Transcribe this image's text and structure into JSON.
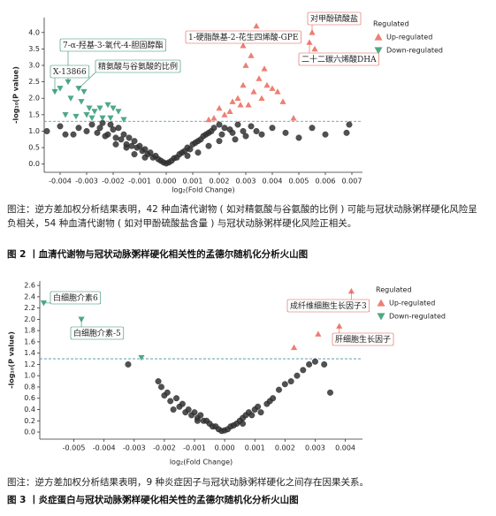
{
  "chart_data": [
    {
      "type": "scatter",
      "xlabel": "log₂(Fold Change)",
      "ylabel": "-log₁₀(P value)",
      "xlim": [
        -0.0046,
        0.0074
      ],
      "ylim": [
        -0.25,
        4.45
      ],
      "xticks": [
        -0.004,
        -0.003,
        -0.002,
        -0.001,
        {
          "value": 0,
          "label": "0.000"
        },
        0.001,
        0.002,
        0.003,
        0.004,
        0.005,
        0.006,
        0.007
      ],
      "yticks": [
        {
          "value": 0,
          "label": "0.0"
        },
        0.5,
        {
          "value": 1,
          "label": "1.0"
        },
        1.5,
        {
          "value": 2,
          "label": "2.0"
        },
        2.5,
        {
          "value": 3,
          "label": "3.0"
        },
        3.5,
        {
          "value": 4,
          "label": "4.0"
        }
      ],
      "threshold": 1.3,
      "legend_title": "Regulated",
      "legend": "outside upper right",
      "series": [
        {
          "color": "#333333",
          "x": [
            -0.0045,
            -0.004,
            -0.0038,
            -0.0035,
            -0.0033,
            -0.003,
            -0.0028,
            -0.0026,
            -0.0025,
            -0.0024,
            -0.0022,
            -0.0021,
            -0.002,
            -0.0019,
            -0.0018,
            -0.0017,
            -0.0016,
            -0.0015,
            -0.0014,
            -0.0013,
            -0.0012,
            -0.0011,
            -0.001,
            -0.0009,
            -0.0008,
            -0.0007,
            -0.0006,
            -0.0005,
            -0.0004,
            -0.0003,
            -0.0002,
            -0.0001,
            0,
            0.0001,
            0.0002,
            0.0003,
            0.0004,
            0.0005,
            0.0006,
            0.0007,
            0.0008,
            0.0009,
            0.001,
            0.0011,
            0.0012,
            0.0013,
            0.0014,
            0.0015,
            0.0016,
            0.0017,
            0.0018,
            0.002,
            0.0021,
            0.0022,
            0.0024,
            0.0025,
            0.0027,
            0.0029,
            0.003,
            0.0032,
            0.0034,
            0.0036,
            0.004,
            0.0045,
            0.005,
            0.0055,
            0.006,
            0.0068,
            0.0069,
            -0.0019,
            -0.0015,
            -0.0012,
            -0.0008,
            0.0008,
            0.0012,
            0.0016,
            0.002,
            -0.0023,
            0.0026
          ],
          "values": [
            1.0,
            1.15,
            0.9,
            0.9,
            1.1,
            1.0,
            1.2,
            0.95,
            1.1,
            1.25,
            0.9,
            1.2,
            1.05,
            0.8,
            1.1,
            0.75,
            0.9,
            0.6,
            0.8,
            0.55,
            0.7,
            0.5,
            0.55,
            0.4,
            0.45,
            0.3,
            0.35,
            0.2,
            0.25,
            0.15,
            0.1,
            0.05,
            0.02,
            0.05,
            0.1,
            0.18,
            0.2,
            0.3,
            0.35,
            0.4,
            0.5,
            0.45,
            0.6,
            0.65,
            0.7,
            0.75,
            0.85,
            0.9,
            0.95,
            1.0,
            1.1,
            1.2,
            0.9,
            1.1,
            1.05,
            0.95,
            1.2,
            1.0,
            0.85,
            1.15,
            1.0,
            0.9,
            1.1,
            0.95,
            0.8,
            1.1,
            0.9,
            0.95,
            1.2,
            0.6,
            0.5,
            0.3,
            0.2,
            0.25,
            0.35,
            0.55,
            0.7,
            0.85,
            0.75
          ]
        },
        {
          "name": "Up-regulated",
          "color": "#ee7f73",
          "x": [
            0.0034,
            0.0055,
            0.0054,
            0.0056,
            0.0029,
            0.0032,
            0.003,
            0.0037,
            0.0035,
            0.0038,
            0.004,
            0.0033,
            0.0029,
            0.0027,
            0.0025,
            0.002,
            0.0022,
            0.0018,
            0.0031,
            0.0036,
            0.0042,
            0.0044,
            0.0016,
            0.0048,
            0.0024,
            0.0028
          ],
          "values": [
            4.2,
            4.0,
            3.7,
            3.5,
            3.6,
            3.3,
            3.0,
            2.9,
            2.6,
            2.4,
            2.3,
            2.2,
            2.4,
            2.0,
            1.9,
            1.7,
            1.5,
            1.4,
            1.8,
            2.0,
            2.2,
            1.9,
            1.35,
            1.4,
            1.6,
            1.8
          ]
        },
        {
          "name": "Down-regulated",
          "color": "#4fa888",
          "x": [
            -0.0042,
            -0.004,
            -0.0037,
            -0.0033,
            -0.0031,
            -0.0036,
            -0.0032,
            -0.0029,
            -0.0027,
            -0.0025,
            -0.0022,
            -0.002,
            -0.0018,
            -0.003,
            -0.0028,
            -0.0024,
            -0.0021,
            -0.0016,
            -0.0034,
            -0.0038
          ],
          "values": [
            2.2,
            2.3,
            2.5,
            2.3,
            2.2,
            2.0,
            1.9,
            1.7,
            1.6,
            1.7,
            1.8,
            1.7,
            1.6,
            1.5,
            1.4,
            1.4,
            1.4,
            1.35,
            1.45,
            1.5
          ]
        }
      ],
      "annotations": [
        "对甲酚硫酸盐",
        "1-硬脂酰基-2-花生四烯酸-GPE",
        "二十二碳六烯酸DHA",
        "7-α-羟基-3-氧代-4-胆固醇酯",
        "X-13866",
        "精氨酸与谷氨酸的比例"
      ]
    },
    {
      "type": "scatter",
      "xlabel": "log₂(Fold Change)",
      "ylabel": "-log₁₀(P value)",
      "xlim": [
        -0.00613,
        0.00457
      ],
      "ylim": [
        -0.125,
        2.68
      ],
      "xticks": [
        -0.005,
        -0.004,
        -0.003,
        -0.002,
        -0.001,
        {
          "value": 0,
          "label": "0.000"
        },
        0.001,
        0.002,
        0.003,
        0.004
      ],
      "yticks": [
        {
          "value": 0,
          "label": "0.0"
        },
        0.2,
        0.4,
        0.6,
        0.8,
        {
          "value": 1,
          "label": "1.0"
        },
        1.2,
        1.4,
        1.6,
        1.8,
        {
          "value": 2,
          "label": "2.0"
        },
        2.2,
        2.4,
        2.6
      ],
      "threshold": 1.3,
      "legend_title": "Regulated",
      "legend": "outside upper right",
      "series": [
        {
          "color": "#333333",
          "x": [
            -0.0032,
            -0.0022,
            -0.0021,
            -0.002,
            -0.0019,
            -0.0018,
            -0.0016,
            -0.0015,
            -0.0014,
            -0.0013,
            -0.0012,
            -0.0011,
            -0.001,
            -0.0009,
            -0.0008,
            -0.0007,
            -0.0006,
            -0.0005,
            -0.0004,
            -0.0003,
            -0.0002,
            -0.0001,
            0,
            0.0001,
            0.0002,
            0.0003,
            0.0004,
            0.0005,
            0.0006,
            0.0007,
            0.0008,
            0.0009,
            0.001,
            0.0011,
            0.0012,
            0.0014,
            0.0015,
            0.0016,
            0.0018,
            0.002,
            0.0022,
            0.0024,
            0.0026,
            0.0028,
            0.003,
            0.0033,
            0.0035,
            -0.0017,
            -0.0009,
            0.0006
          ],
          "values": [
            1.2,
            0.9,
            0.8,
            0.65,
            0.7,
            0.55,
            0.6,
            0.45,
            0.5,
            0.35,
            0.4,
            0.3,
            0.35,
            0.25,
            0.3,
            0.2,
            0.2,
            0.15,
            0.1,
            0.1,
            0.05,
            0.02,
            0.03,
            0.05,
            0.1,
            0.12,
            0.15,
            0.2,
            0.25,
            0.3,
            0.35,
            0.3,
            0.4,
            0.45,
            0.35,
            0.5,
            0.55,
            0.6,
            0.75,
            0.85,
            0.9,
            1.0,
            1.1,
            1.2,
            1.25,
            1.2,
            0.7,
            0.4,
            0.2,
            0.15
          ]
        },
        {
          "name": "Up-regulated",
          "color": "#ee7f73",
          "x": [
            0.0042,
            0.0038,
            0.0031,
            0.0023
          ],
          "values": [
            2.5,
            1.88,
            1.74,
            1.5
          ]
        },
        {
          "name": "Down-regulated",
          "color": "#4fa888",
          "x": [
            -0.006,
            -0.00475,
            -0.00276
          ],
          "values": [
            2.29,
            2.0,
            1.32
          ]
        }
      ],
      "annotations": [
        "白细胞介素6",
        "白细胞介素-5",
        "成纤维细胞生长因子3",
        "肝细胞生长因子"
      ]
    }
  ],
  "captions": [
    {
      "note": "图注：逆方差加权分析结果表明，42 种血清代谢物 ( 如对精氨酸与谷氨酸的比例 ) 可能与冠状动脉粥样硬化风险呈负相关，54 种血清代谢物 ( 如对甲酚硫酸盐含量 ) 与冠状动脉粥样硬化风险正相关。",
      "title": "图 2 丨血清代谢物与冠状动脉粥样硬化相关性的孟德尔随机化分析火山图"
    },
    {
      "note": "图注：逆方差加权分析结果表明，9 种炎症因子与冠状动脉粥样硬化之间存在因果关系。",
      "title": "图 3 丨炎症蛋白与冠状动脉粥样硬化相关性的孟德尔随机化分析火山图"
    }
  ]
}
